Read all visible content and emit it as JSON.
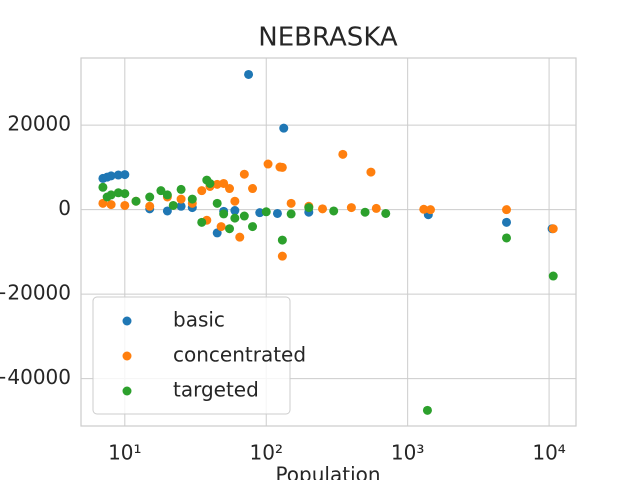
{
  "chart_data": {
    "type": "scatter",
    "title": "NEBRASKA",
    "x_label": "Population",
    "xscale": "log",
    "xlim": [
      4.9,
      15500
    ],
    "ylim": [
      -51200,
      35900
    ],
    "xticks": [
      {
        "value": 10,
        "label": "10¹"
      },
      {
        "value": 100,
        "label": "10²"
      },
      {
        "value": 1000,
        "label": "10³"
      },
      {
        "value": 10000,
        "label": "10⁴"
      }
    ],
    "yticks": [
      {
        "value": -40000,
        "label": "−40000"
      },
      {
        "value": -20000,
        "label": "−20000"
      },
      0,
      20000
    ],
    "grid": true,
    "legend": "lower left",
    "series": [
      {
        "name": "basic",
        "color": "#1f77b4",
        "x": [
          7,
          7.5,
          8,
          9,
          10,
          75,
          133,
          45,
          20,
          30,
          60,
          90,
          120,
          200,
          1400,
          5000,
          10500,
          15,
          25,
          50
        ],
        "values": [
          7400,
          7700,
          8000,
          8200,
          8300,
          32000,
          19300,
          -5500,
          -300,
          500,
          -200,
          -700,
          -900,
          -600,
          -1200,
          -3000,
          -4500,
          200,
          800,
          -400
        ]
      },
      {
        "name": "concentrated",
        "color": "#ff7f0e",
        "x": [
          7,
          8,
          10,
          12,
          15,
          20,
          25,
          30,
          35,
          40,
          45,
          50,
          55,
          60,
          70,
          80,
          103,
          125,
          130,
          130,
          150,
          200,
          250,
          348,
          400,
          550,
          600,
          1300,
          1450,
          5000,
          10700,
          38,
          48,
          65
        ],
        "values": [
          1500,
          1200,
          1000,
          2000,
          800,
          3000,
          2500,
          1500,
          4500,
          5500,
          6000,
          6200,
          5000,
          2000,
          8400,
          5000,
          10800,
          10100,
          10000,
          -11000,
          1500,
          800,
          200,
          13100,
          500,
          8900,
          300,
          100,
          0,
          0,
          -4500,
          -2500,
          -4000,
          -6500
        ]
      },
      {
        "name": "targeted",
        "color": "#2ca02c",
        "x": [
          7,
          7.5,
          8,
          9,
          10,
          12,
          15,
          18,
          20,
          25,
          30,
          38,
          40,
          45,
          50,
          55,
          60,
          70,
          80,
          100,
          130,
          150,
          200,
          300,
          500,
          700,
          1380,
          5000,
          10700,
          22,
          35
        ],
        "values": [
          5300,
          3000,
          3500,
          4000,
          3800,
          2000,
          3000,
          4500,
          3500,
          4800,
          2500,
          7000,
          6200,
          1500,
          -1000,
          -4500,
          -2000,
          -1500,
          -4000,
          -500,
          -7200,
          -1000,
          500,
          -300,
          -600,
          -900,
          -47500,
          -6700,
          -15700,
          1000,
          -3000
        ]
      }
    ]
  }
}
